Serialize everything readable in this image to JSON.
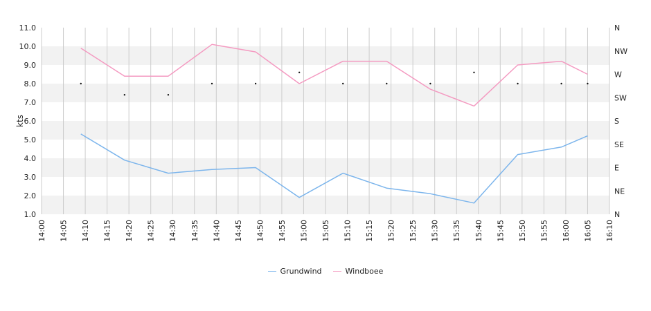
{
  "chart_data": {
    "type": "line",
    "ylabel": "kts",
    "ylim": [
      1.0,
      11.0
    ],
    "y_ticks": [
      "1.0",
      "2.0",
      "3.0",
      "4.0",
      "5.0",
      "6.0",
      "7.0",
      "8.0",
      "9.0",
      "10.0",
      "11.0"
    ],
    "x_range": [
      "14:00",
      "16:10"
    ],
    "x_ticks": [
      "14:00",
      "14:05",
      "14:10",
      "14:15",
      "14:20",
      "14:25",
      "14:30",
      "14:35",
      "14:40",
      "14:45",
      "14:50",
      "14:55",
      "15:00",
      "15:05",
      "15:10",
      "15:15",
      "15:20",
      "15:25",
      "15:30",
      "15:35",
      "15:40",
      "15:45",
      "15:50",
      "15:55",
      "16:00",
      "16:05",
      "16:10"
    ],
    "right_axis_labels": [
      "N",
      "NE",
      "E",
      "SE",
      "S",
      "SW",
      "W",
      "NW",
      "N"
    ],
    "x": [
      "14:09",
      "14:19",
      "14:29",
      "14:39",
      "14:49",
      "14:59",
      "15:09",
      "15:19",
      "15:29",
      "15:39",
      "15:49",
      "15:59",
      "16:05"
    ],
    "series": [
      {
        "name": "Grundwind",
        "color": "#7cb5ec",
        "values": [
          5.3,
          3.9,
          3.2,
          3.4,
          3.5,
          1.9,
          3.2,
          2.4,
          2.1,
          1.6,
          4.2,
          4.6,
          5.2
        ]
      },
      {
        "name": "Windboee",
        "color": "#f49ac1",
        "values": [
          9.9,
          8.4,
          8.4,
          10.1,
          9.7,
          8.0,
          9.2,
          9.2,
          7.7,
          6.8,
          9.0,
          9.2,
          8.5
        ]
      }
    ],
    "direction_markers": [
      8.0,
      7.4,
      7.4,
      8.0,
      8.0,
      8.6,
      8.0,
      8.0,
      8.0,
      8.6,
      8.0,
      8.0,
      8.0
    ],
    "grid": true,
    "legend_position": "bottom-center"
  }
}
